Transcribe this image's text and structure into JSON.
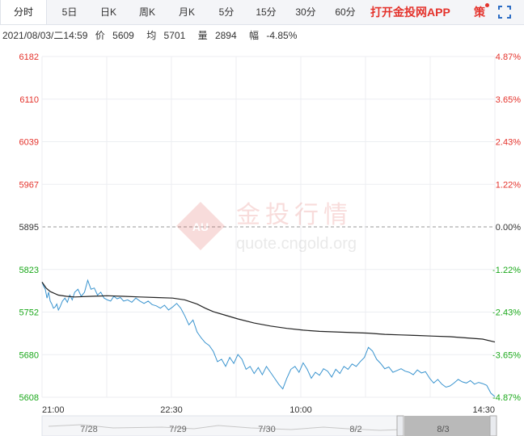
{
  "tabs": [
    "分时",
    "5日",
    "日K",
    "周K",
    "月K",
    "5分",
    "15分",
    "30分",
    "60分"
  ],
  "active_tab": "分时",
  "app_link": "打开金投网APP",
  "strategy_label": "策",
  "info": {
    "datetime": "2021/08/03/二14:59",
    "price_label": "价",
    "price": "5609",
    "avg_label": "均",
    "avg": "5701",
    "volume_label": "量",
    "volume": "2894",
    "change_label": "幅",
    "change": "-4.85%"
  },
  "watermark": {
    "title": "金投行情",
    "url": "quote.cngold.org",
    "logo": "AU"
  },
  "colors": {
    "up": "#e4322b",
    "down": "#1aa81a",
    "price_line": "#3a94cf",
    "avg_line": "#222222",
    "accent": "#e4322b"
  },
  "chart_data": {
    "type": "line",
    "x_ticks": [
      "21:00",
      "22:30",
      "10:00",
      "14:30"
    ],
    "y_ticks": [
      "6182",
      "6110",
      "6039",
      "5967",
      "5895",
      "5823",
      "5752",
      "5680",
      "5608"
    ],
    "pct_ticks": [
      "4.87%",
      "3.65%",
      "2.43%",
      "1.22%",
      "0.00%",
      "-1.22%",
      "-2.43%",
      "-3.65%",
      "-4.87%"
    ],
    "ylim": [
      5608,
      6182
    ],
    "reference_price": 5895,
    "series": [
      {
        "name": "价",
        "x": [
          0,
          2,
          4,
          6,
          8,
          10,
          12,
          14,
          16,
          18,
          20,
          22,
          25,
          28,
          31,
          34,
          37,
          40,
          44,
          48,
          52,
          56,
          60,
          64,
          68,
          72,
          76,
          80,
          84,
          88,
          92,
          96,
          100,
          105,
          110,
          115,
          120,
          125,
          130,
          135,
          140,
          145,
          150,
          155,
          160,
          165,
          170,
          175,
          180,
          185,
          190,
          195,
          200,
          205,
          210,
          215,
          220,
          225,
          230,
          235,
          240,
          245,
          250,
          255,
          260,
          265,
          270,
          275,
          280,
          285,
          290,
          295,
          300,
          305,
          310,
          315,
          320,
          325,
          330,
          335,
          340,
          345,
          350,
          355,
          360,
          365,
          370,
          375,
          380,
          385,
          390,
          395,
          400,
          405,
          410,
          415,
          420,
          425,
          430,
          435,
          440,
          445,
          450,
          455,
          460,
          465,
          470,
          475,
          480,
          485,
          490,
          495,
          500,
          505,
          510,
          515,
          520,
          525,
          530,
          535,
          540,
          545,
          550,
          555
        ],
        "values": [
          5802,
          5795,
          5790,
          5775,
          5785,
          5770,
          5765,
          5758,
          5760,
          5765,
          5755,
          5760,
          5770,
          5775,
          5768,
          5780,
          5772,
          5785,
          5790,
          5778,
          5785,
          5805,
          5790,
          5792,
          5780,
          5785,
          5775,
          5772,
          5770,
          5778,
          5774,
          5776,
          5770,
          5772,
          5768,
          5775,
          5770,
          5766,
          5770,
          5764,
          5762,
          5758,
          5763,
          5755,
          5760,
          5766,
          5758,
          5745,
          5730,
          5738,
          5718,
          5708,
          5700,
          5695,
          5685,
          5668,
          5672,
          5660,
          5675,
          5665,
          5680,
          5672,
          5655,
          5660,
          5648,
          5658,
          5646,
          5660,
          5650,
          5640,
          5630,
          5622,
          5640,
          5655,
          5660,
          5650,
          5666,
          5655,
          5640,
          5650,
          5645,
          5656,
          5652,
          5642,
          5655,
          5648,
          5660,
          5655,
          5664,
          5660,
          5668,
          5675,
          5692,
          5686,
          5672,
          5665,
          5656,
          5659,
          5650,
          5653,
          5656,
          5652,
          5650,
          5646,
          5654,
          5649,
          5651,
          5640,
          5632,
          5638,
          5630,
          5625,
          5627,
          5632,
          5638,
          5634,
          5632,
          5636,
          5630,
          5633,
          5631,
          5628,
          5615,
          5609
        ]
      },
      {
        "name": "均",
        "x": [
          0,
          5,
          10,
          20,
          30,
          40,
          60,
          80,
          100,
          120,
          140,
          160,
          175,
          190,
          200,
          210,
          225,
          240,
          260,
          280,
          300,
          320,
          340,
          360,
          380,
          400,
          420,
          440,
          460,
          480,
          500,
          520,
          540,
          555
        ],
        "values": [
          5802,
          5792,
          5786,
          5780,
          5778,
          5777,
          5778,
          5779,
          5778,
          5777,
          5776,
          5775,
          5772,
          5765,
          5758,
          5752,
          5746,
          5740,
          5733,
          5728,
          5724,
          5721,
          5719,
          5718,
          5717,
          5716,
          5714,
          5713,
          5712,
          5711,
          5710,
          5708,
          5706,
          5701
        ]
      }
    ]
  },
  "navigator": {
    "labels": [
      "7/28",
      "7/29",
      "7/30",
      "8/2",
      "8/3"
    ]
  }
}
